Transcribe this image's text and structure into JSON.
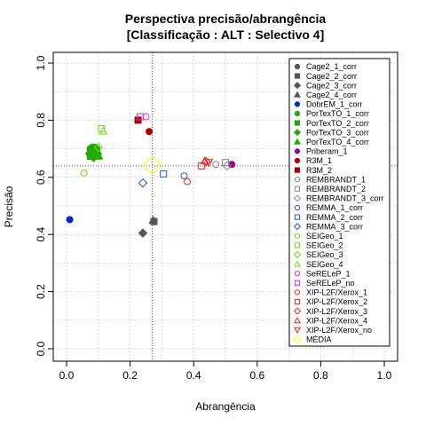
{
  "chart_data": {
    "type": "scatter",
    "title": [
      "Perspectiva precisão/abrangência",
      "[Classificação : ALT : Selectivo 4]"
    ],
    "xlabel": "Abrangência",
    "ylabel": "Precisão",
    "xlim": [
      0,
      1
    ],
    "ylim": [
      0,
      1
    ],
    "x_ticks": [
      "0.0",
      "0.2",
      "0.4",
      "0.6",
      "0.8",
      "1.0"
    ],
    "y_ticks": [
      "0.0",
      "0.2",
      "0.4",
      "0.6",
      "0.8",
      "1.0"
    ],
    "grid": true,
    "reference_lines": {
      "x": 0.27,
      "y": 0.64
    },
    "legend_position": "right",
    "series": [
      {
        "name": "Cage2_1_corr",
        "color": "#555555",
        "marker": "circle",
        "filled": true,
        "points": [
          [
            0.275,
            0.447
          ]
        ]
      },
      {
        "name": "Cage2_2_corr",
        "color": "#555555",
        "marker": "square",
        "filled": true,
        "points": [
          [
            0.275,
            0.445
          ]
        ]
      },
      {
        "name": "Cage2_3_corr",
        "color": "#555555",
        "marker": "diamond",
        "filled": true,
        "points": [
          [
            0.24,
            0.405
          ]
        ]
      },
      {
        "name": "Cage2_4_corr",
        "color": "#555555",
        "marker": "triangle",
        "filled": true,
        "points": [
          [
            0.272,
            0.45
          ]
        ]
      },
      {
        "name": "DobrEM_1_corr",
        "color": "#0022cc",
        "marker": "circle",
        "filled": true,
        "points": [
          [
            0.01,
            0.452
          ]
        ]
      },
      {
        "name": "PorTexTO_1_corr",
        "color": "#22aa00",
        "marker": "circle",
        "filled": true,
        "points": [
          [
            0.085,
            0.695
          ]
        ]
      },
      {
        "name": "PorTexTO_2_corr",
        "color": "#22aa00",
        "marker": "square",
        "filled": true,
        "points": [
          [
            0.085,
            0.685
          ]
        ]
      },
      {
        "name": "PorTexTO_3_corr",
        "color": "#22aa00",
        "marker": "diamond",
        "filled": true,
        "points": [
          [
            0.085,
            0.683
          ]
        ]
      },
      {
        "name": "PorTexTO_4_corr",
        "color": "#22aa00",
        "marker": "triangle",
        "filled": true,
        "points": [
          [
            0.09,
            0.685
          ]
        ]
      },
      {
        "name": "Priberam_1",
        "color": "#990099",
        "marker": "circle",
        "filled": true,
        "points": [
          [
            0.52,
            0.645
          ]
        ]
      },
      {
        "name": "R3M_1",
        "color": "#aa0000",
        "marker": "circle",
        "filled": true,
        "points": [
          [
            0.26,
            0.76
          ]
        ]
      },
      {
        "name": "R3M_2",
        "color": "#aa0000",
        "marker": "square",
        "filled": true,
        "points": [
          [
            0.225,
            0.8
          ]
        ]
      },
      {
        "name": "REMBRANDT_1",
        "color": "#888888",
        "marker": "circle",
        "filled": false,
        "points": [
          [
            0.47,
            0.645
          ]
        ]
      },
      {
        "name": "REMBRANDT_2",
        "color": "#888888",
        "marker": "square",
        "filled": false,
        "points": [
          [
            0.5,
            0.652
          ]
        ]
      },
      {
        "name": "REMBRANDT_3_corr",
        "color": "#888888",
        "marker": "diamond",
        "filled": false,
        "points": [
          [
            0.505,
            0.64
          ]
        ]
      },
      {
        "name": "REMMA_1_corr",
        "color": "#2255dd",
        "marker": "circle",
        "filled": false,
        "points": [
          [
            0.37,
            0.605
          ]
        ]
      },
      {
        "name": "REMMA_2_corr",
        "color": "#2255dd",
        "marker": "square",
        "filled": false,
        "points": [
          [
            0.305,
            0.612
          ]
        ]
      },
      {
        "name": "REMMA_3_corr",
        "color": "#2255dd",
        "marker": "diamond",
        "filled": false,
        "points": [
          [
            0.24,
            0.58
          ]
        ]
      },
      {
        "name": "SEIGeo_1",
        "color": "#66dd11",
        "marker": "circle",
        "filled": false,
        "points": [
          [
            0.055,
            0.615
          ]
        ]
      },
      {
        "name": "SEIGeo_2",
        "color": "#66dd11",
        "marker": "square",
        "filled": false,
        "points": [
          [
            0.11,
            0.77
          ]
        ]
      },
      {
        "name": "SEIGeo_3",
        "color": "#66dd11",
        "marker": "diamond",
        "filled": false,
        "points": [
          [
            0.1,
            0.705
          ]
        ]
      },
      {
        "name": "SEIGeo_4",
        "color": "#66dd11",
        "marker": "triangle",
        "filled": false,
        "points": [
          [
            0.115,
            0.762
          ]
        ]
      },
      {
        "name": "SeRELeP_1",
        "color": "#ee22ee",
        "marker": "circle",
        "filled": false,
        "points": [
          [
            0.25,
            0.812
          ]
        ]
      },
      {
        "name": "SeRELeP_no",
        "color": "#ee22ee",
        "marker": "square",
        "filled": false,
        "points": [
          [
            0.232,
            0.812
          ]
        ]
      },
      {
        "name": "XIP-L2F/Xerox_1",
        "color": "#ee2222",
        "marker": "circle",
        "filled": false,
        "points": [
          [
            0.38,
            0.585
          ]
        ]
      },
      {
        "name": "XIP-L2F/Xerox_2",
        "color": "#ee2222",
        "marker": "square",
        "filled": false,
        "points": [
          [
            0.425,
            0.64
          ]
        ]
      },
      {
        "name": "XIP-L2F/Xerox_3",
        "color": "#ee2222",
        "marker": "diamond",
        "filled": false,
        "points": [
          [
            0.44,
            0.655
          ]
        ]
      },
      {
        "name": "XIP-L2F/Xerox_4",
        "color": "#ee2222",
        "marker": "triangle",
        "filled": false,
        "points": [
          [
            0.435,
            0.657
          ]
        ]
      },
      {
        "name": "XIP-L2F/Xerox_no",
        "color": "#ee2222",
        "marker": "triangle-down",
        "filled": false,
        "points": [
          [
            0.448,
            0.652
          ]
        ]
      },
      {
        "name": "MÉDIA",
        "color": "#ffff00",
        "marker": "diamond-big",
        "filled": false,
        "points": [
          [
            0.27,
            0.642
          ]
        ]
      }
    ]
  }
}
